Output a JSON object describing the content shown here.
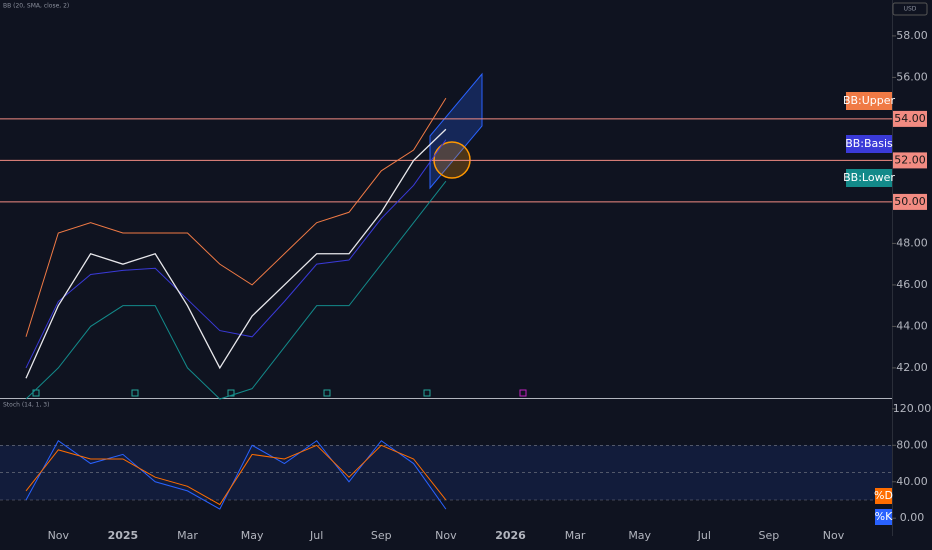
{
  "chart_data": [
    {
      "type": "line",
      "title": "BB (20, SMA, close, 2)",
      "currency": "USD",
      "categories": [
        null,
        "Nov",
        null,
        "2025",
        null,
        "Mar",
        null,
        "May",
        null,
        "Jul",
        null,
        "Sep",
        null,
        "Nov",
        null,
        "2026",
        null,
        "Mar",
        null,
        "May",
        null,
        "Jul",
        null,
        "Sep",
        null,
        "Nov"
      ],
      "values": [
        41.5,
        45,
        47.5,
        47,
        47.5,
        45,
        42,
        44.5,
        46,
        47.5,
        47.5,
        49.5,
        52,
        53.5,
        null,
        null,
        null,
        null,
        null,
        null,
        null,
        null,
        null,
        null,
        null,
        null
      ],
      "color": "#e8e8ec",
      "series": [
        {
          "name": "BB:Upper",
          "color": "#f07a45",
          "values": [
            43.5,
            48.5,
            49,
            48.5,
            48.5,
            48.5,
            47,
            46,
            47.5,
            49,
            49.5,
            51.5,
            52.5,
            55,
            null,
            null,
            null,
            null,
            null,
            null,
            null,
            null,
            null,
            null,
            null,
            null
          ]
        },
        {
          "name": "BB:Basis",
          "color": "#3a3ad8",
          "values": [
            42,
            45.2,
            46.5,
            46.7,
            46.8,
            45.3,
            43.8,
            43.5,
            45.2,
            47,
            47.2,
            49.2,
            50.8,
            53,
            null,
            null,
            null,
            null,
            null,
            null,
            null,
            null,
            null,
            null,
            null,
            null
          ]
        },
        {
          "name": "BB:Lower",
          "color": "#138a8a",
          "values": [
            40.5,
            42,
            44,
            45,
            45,
            42,
            40.5,
            41,
            43,
            45,
            45,
            47,
            49,
            51,
            null,
            null,
            null,
            null,
            null,
            null,
            null,
            null,
            null,
            null,
            null,
            null
          ]
        }
      ],
      "levels": [
        {
          "value": 54,
          "label": "54.00"
        },
        {
          "value": 52,
          "label": "52.00"
        },
        {
          "value": 50,
          "label": "50.00"
        }
      ],
      "level_color": "#f28b82",
      "ylim": [
        40.55,
        59.73
      ],
      "yticks": [
        {
          "value": 42,
          "label": "42.00"
        },
        {
          "value": 44,
          "label": "44.00"
        },
        {
          "value": 46,
          "label": "46.00"
        },
        {
          "value": 48,
          "label": "48.00"
        },
        {
          "value": 50,
          "label": "50.00"
        },
        {
          "value": 52,
          "label": "52.00"
        },
        {
          "value": 54,
          "label": "54.00"
        },
        {
          "value": 56,
          "label": "56.00"
        },
        {
          "value": 58,
          "label": "58.00"
        }
      ]
    },
    {
      "type": "line",
      "title": "Stoch (14, 1, 3)",
      "series": [
        {
          "name": "%K",
          "color": "#2962ff",
          "values": [
            20,
            85,
            60,
            70,
            40,
            30,
            10,
            80,
            60,
            85,
            40,
            85,
            60,
            10,
            null,
            null,
            null,
            null,
            null,
            null,
            null,
            null,
            null,
            null,
            null,
            null
          ]
        },
        {
          "name": "%D",
          "color": "#ff6d00",
          "values": [
            30,
            75,
            65,
            65,
            45,
            35,
            15,
            70,
            65,
            80,
            45,
            80,
            65,
            20,
            null,
            null,
            null,
            null,
            null,
            null,
            null,
            null,
            null,
            null,
            null,
            null
          ]
        }
      ],
      "band": [
        20,
        80
      ],
      "hlines": [
        80,
        50,
        20
      ],
      "ylim": [
        -19.5,
        130.8
      ],
      "yticks": [
        {
          "value": 0,
          "label": "0.00"
        },
        {
          "value": 40,
          "label": "40.00"
        },
        {
          "value": 80,
          "label": "80.00"
        },
        {
          "value": 120,
          "label": "120.00"
        }
      ]
    }
  ]
}
